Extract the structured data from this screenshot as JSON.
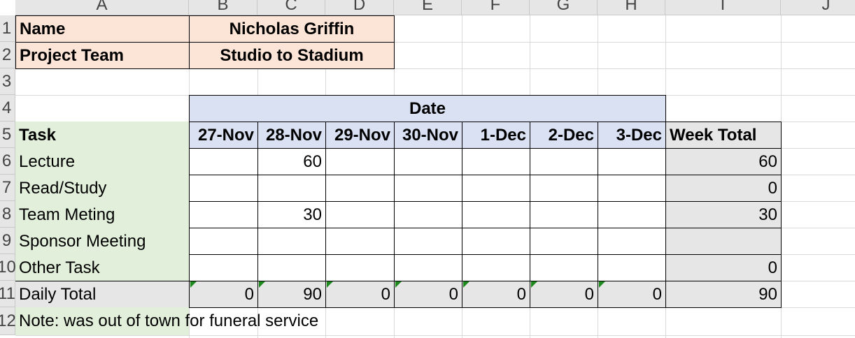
{
  "columns": [
    "A",
    "B",
    "C",
    "D",
    "E",
    "F",
    "G",
    "H",
    "I",
    "J"
  ],
  "rows": [
    "1",
    "2",
    "3",
    "4",
    "5",
    "6",
    "7",
    "8",
    "9",
    "10",
    "11",
    "12"
  ],
  "header": {
    "name_label": "Name",
    "name_value": "Nicholas Griffin",
    "team_label": "Project Team",
    "team_value": "Studio to Stadium"
  },
  "table": {
    "group_header": "Date",
    "task_header": "Task",
    "dates": [
      "27-Nov",
      "28-Nov",
      "29-Nov",
      "30-Nov",
      "1-Dec",
      "2-Dec",
      "3-Dec"
    ],
    "total_header": "Week Total",
    "tasks": [
      {
        "name": "Lecture",
        "values": [
          "",
          "60",
          "",
          "",
          "",
          "",
          ""
        ],
        "total": "60"
      },
      {
        "name": "Read/Study",
        "values": [
          "",
          "",
          "",
          "",
          "",
          "",
          ""
        ],
        "total": "0"
      },
      {
        "name": "Team Meting",
        "values": [
          "",
          "30",
          "",
          "",
          "",
          "",
          ""
        ],
        "total": "30"
      },
      {
        "name": "Sponsor Meeting",
        "values": [
          "",
          "",
          "",
          "",
          "",
          "",
          ""
        ],
        "total": ""
      },
      {
        "name": "Other Task",
        "values": [
          "",
          "",
          "",
          "",
          "",
          "",
          ""
        ],
        "total": "0"
      }
    ],
    "daily_total": {
      "name": "Daily Total",
      "values": [
        "0",
        "90",
        "0",
        "0",
        "0",
        "0",
        "0"
      ],
      "total": "90"
    }
  },
  "note": "Note: was out of town for funeral service",
  "colors": {
    "peach": "#fce4d6",
    "green": "#e2efda",
    "blue": "#d9e1f2",
    "gray": "#e7e6e6",
    "error_triangle": "#1e8a1e"
  }
}
